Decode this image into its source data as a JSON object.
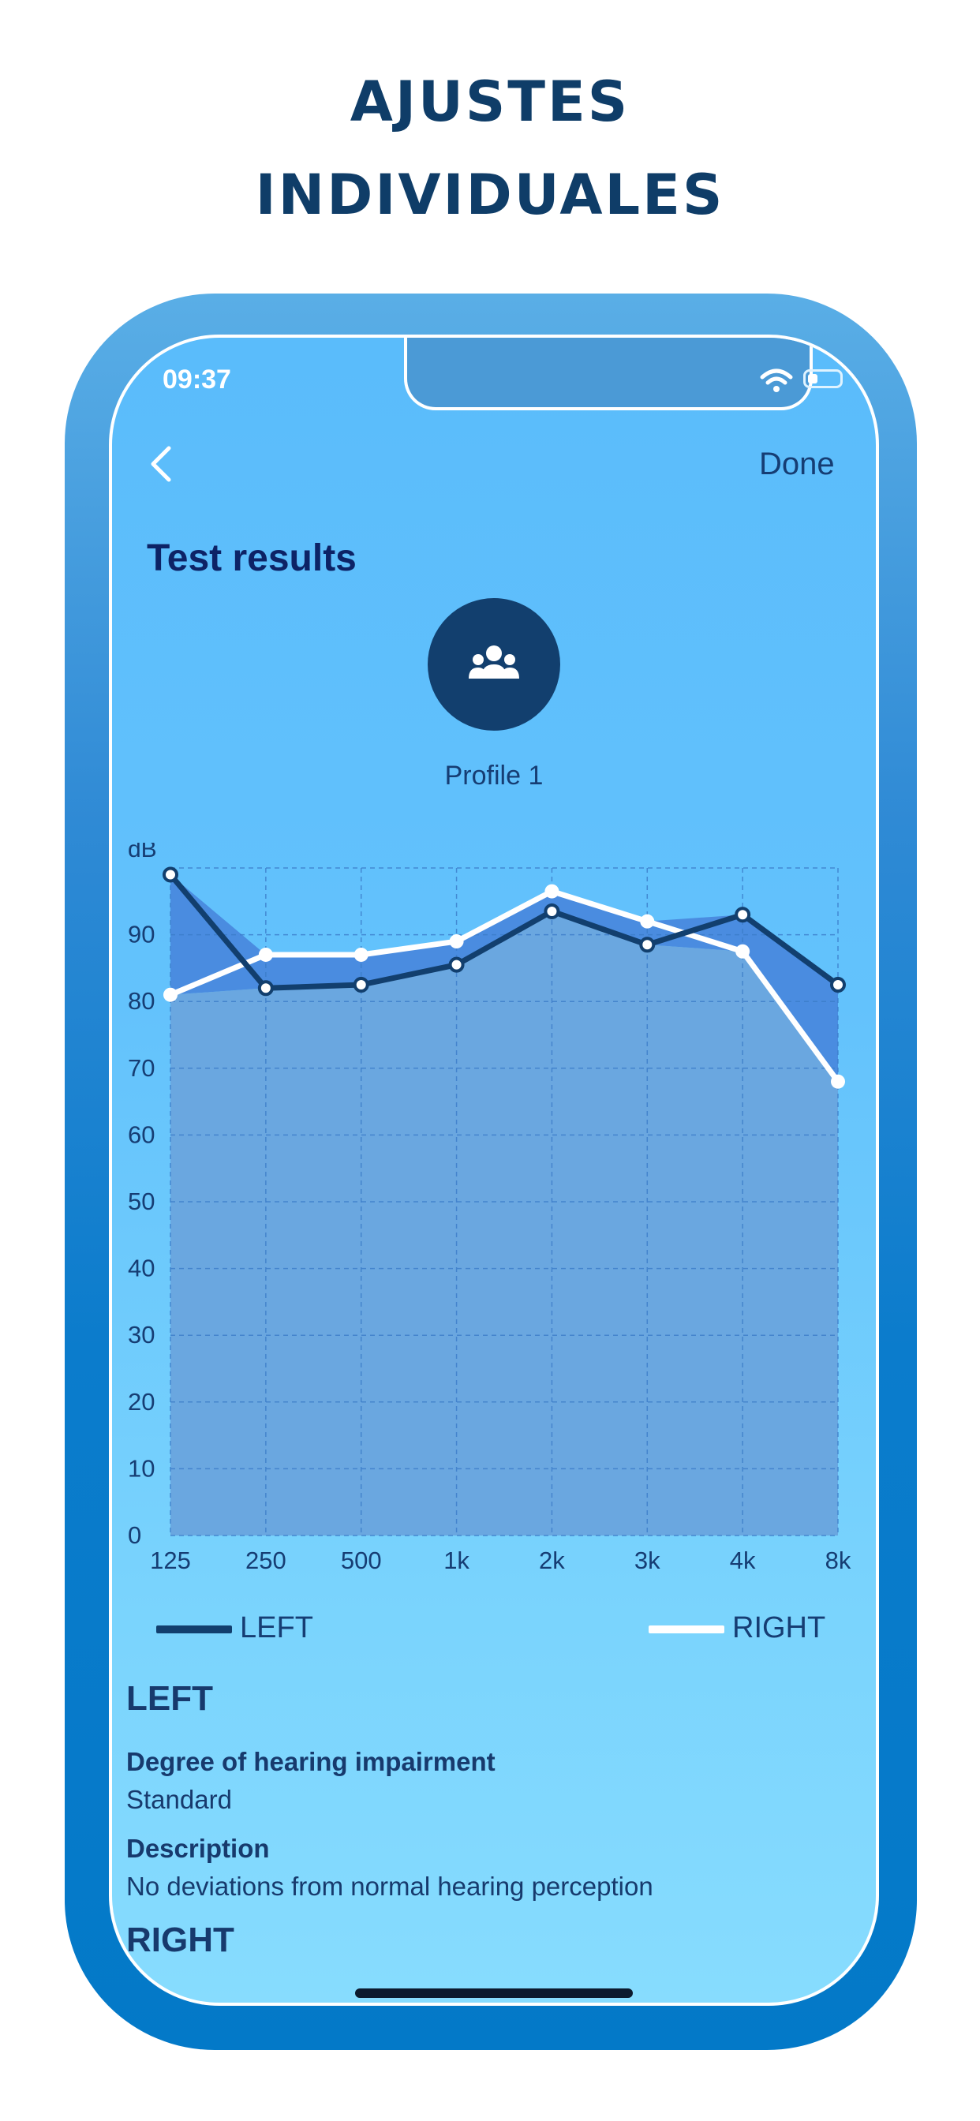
{
  "headline": {
    "line1": "AJUSTES",
    "line2": "INDIVIDUALES"
  },
  "status_bar": {
    "time": "09:37",
    "icons": [
      "wifi-icon",
      "battery-icon"
    ]
  },
  "nav": {
    "back_icon": "chevron-left-icon",
    "done_label": "Done"
  },
  "page": {
    "title": "Test results",
    "avatar_icon": "user-group-icon",
    "profile_name": "Profile 1"
  },
  "chart_data": {
    "type": "line",
    "ylabel": "dB",
    "xlabel": "",
    "categories": [
      "125",
      "250",
      "500",
      "1k",
      "2k",
      "3k",
      "4k",
      "8k"
    ],
    "y_ticks": [
      "0",
      "10",
      "20",
      "30",
      "40",
      "50",
      "60",
      "70",
      "80",
      "90"
    ],
    "ylim": [
      0,
      100
    ],
    "grid": true,
    "legend_placement": "bottom",
    "series": [
      {
        "name": "LEFT",
        "values": [
          99,
          82,
          82.5,
          85.5,
          93.5,
          88.5,
          93,
          82.5
        ],
        "color": "#123f6e"
      },
      {
        "name": "RIGHT",
        "values": [
          81,
          87,
          87,
          89,
          96.5,
          92,
          87.5,
          68
        ],
        "color": "#ffffff"
      }
    ],
    "fill_base_color": "#6aa7e0",
    "fill_band_color": "#4a8ce0"
  },
  "legend": {
    "left_label": "LEFT",
    "right_label": "RIGHT"
  },
  "left_section": {
    "heading": "LEFT",
    "degree_label": "Degree of hearing impairment",
    "degree_value": "Standard",
    "description_label": "Description",
    "description_value": "No deviations from normal hearing perception"
  },
  "right_section": {
    "heading": "RIGHT"
  },
  "colors": {
    "headline": "#0f3d68",
    "frame": "#0379c8",
    "screen_top": "#5abcfb",
    "screen_bottom": "#87dcfe",
    "accent_dark": "#123f6e"
  }
}
